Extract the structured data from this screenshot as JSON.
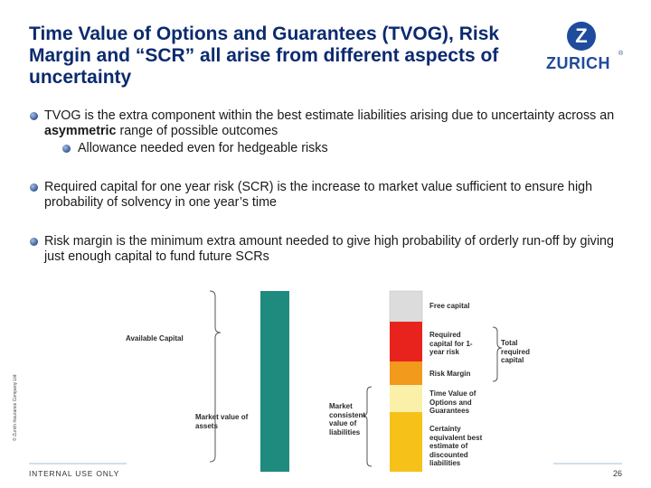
{
  "slide": {
    "title": "Time Value of Options and Guarantees (TVOG), Risk Margin and “SCR” all arise from different aspects of uncertainty",
    "logo": {
      "text": "ZURICH",
      "badge_letter": "Z",
      "reg_mark": "®"
    },
    "bullets": {
      "b1_text": "TVOG is the extra component within the best estimate liabilities arising due to uncertainty across an ",
      "b1_bold": "asymmetric",
      "b1_tail": " range of possible outcomes",
      "b1_sub": "Allowance needed even for hedgeable risks",
      "b2": "Required capital for one year risk (SCR) is the increase to market value sufficient to ensure high probability of solvency in one year’s time",
      "b3": "Risk margin is the minimum extra amount needed to give high probability of orderly run-off by giving just enough capital to fund future SCRs"
    },
    "sidebar_text": "© Zurich Insurance Company Ltd",
    "footer": {
      "left": "INTERNAL USE ONLY",
      "page": "26"
    }
  },
  "diagram": {
    "labels": {
      "available_capital": "Available Capital",
      "market_value_assets": "Market value of assets",
      "market_consistent_liabilities": "Market consistent value of liabilities",
      "total_required_capital": "Total required capital"
    },
    "colors": {
      "assets_bar": "#1f8a7e",
      "free_capital": "#dcdcdc",
      "required_capital": "#e8231e",
      "risk_margin": "#f29a1c",
      "tvog": "#fbf0a8",
      "best_estimate": "#f6c21a"
    },
    "segments": [
      {
        "key": "free_capital",
        "label": "Free capital"
      },
      {
        "key": "required_capital",
        "label": "Required capital for 1-year risk"
      },
      {
        "key": "risk_margin",
        "label": "Risk Margin"
      },
      {
        "key": "tvog",
        "label": "Time Value of Options and Guarantees"
      },
      {
        "key": "best_estimate",
        "label": "Certainty equivalent best estimate of discounted liabilities"
      }
    ]
  }
}
